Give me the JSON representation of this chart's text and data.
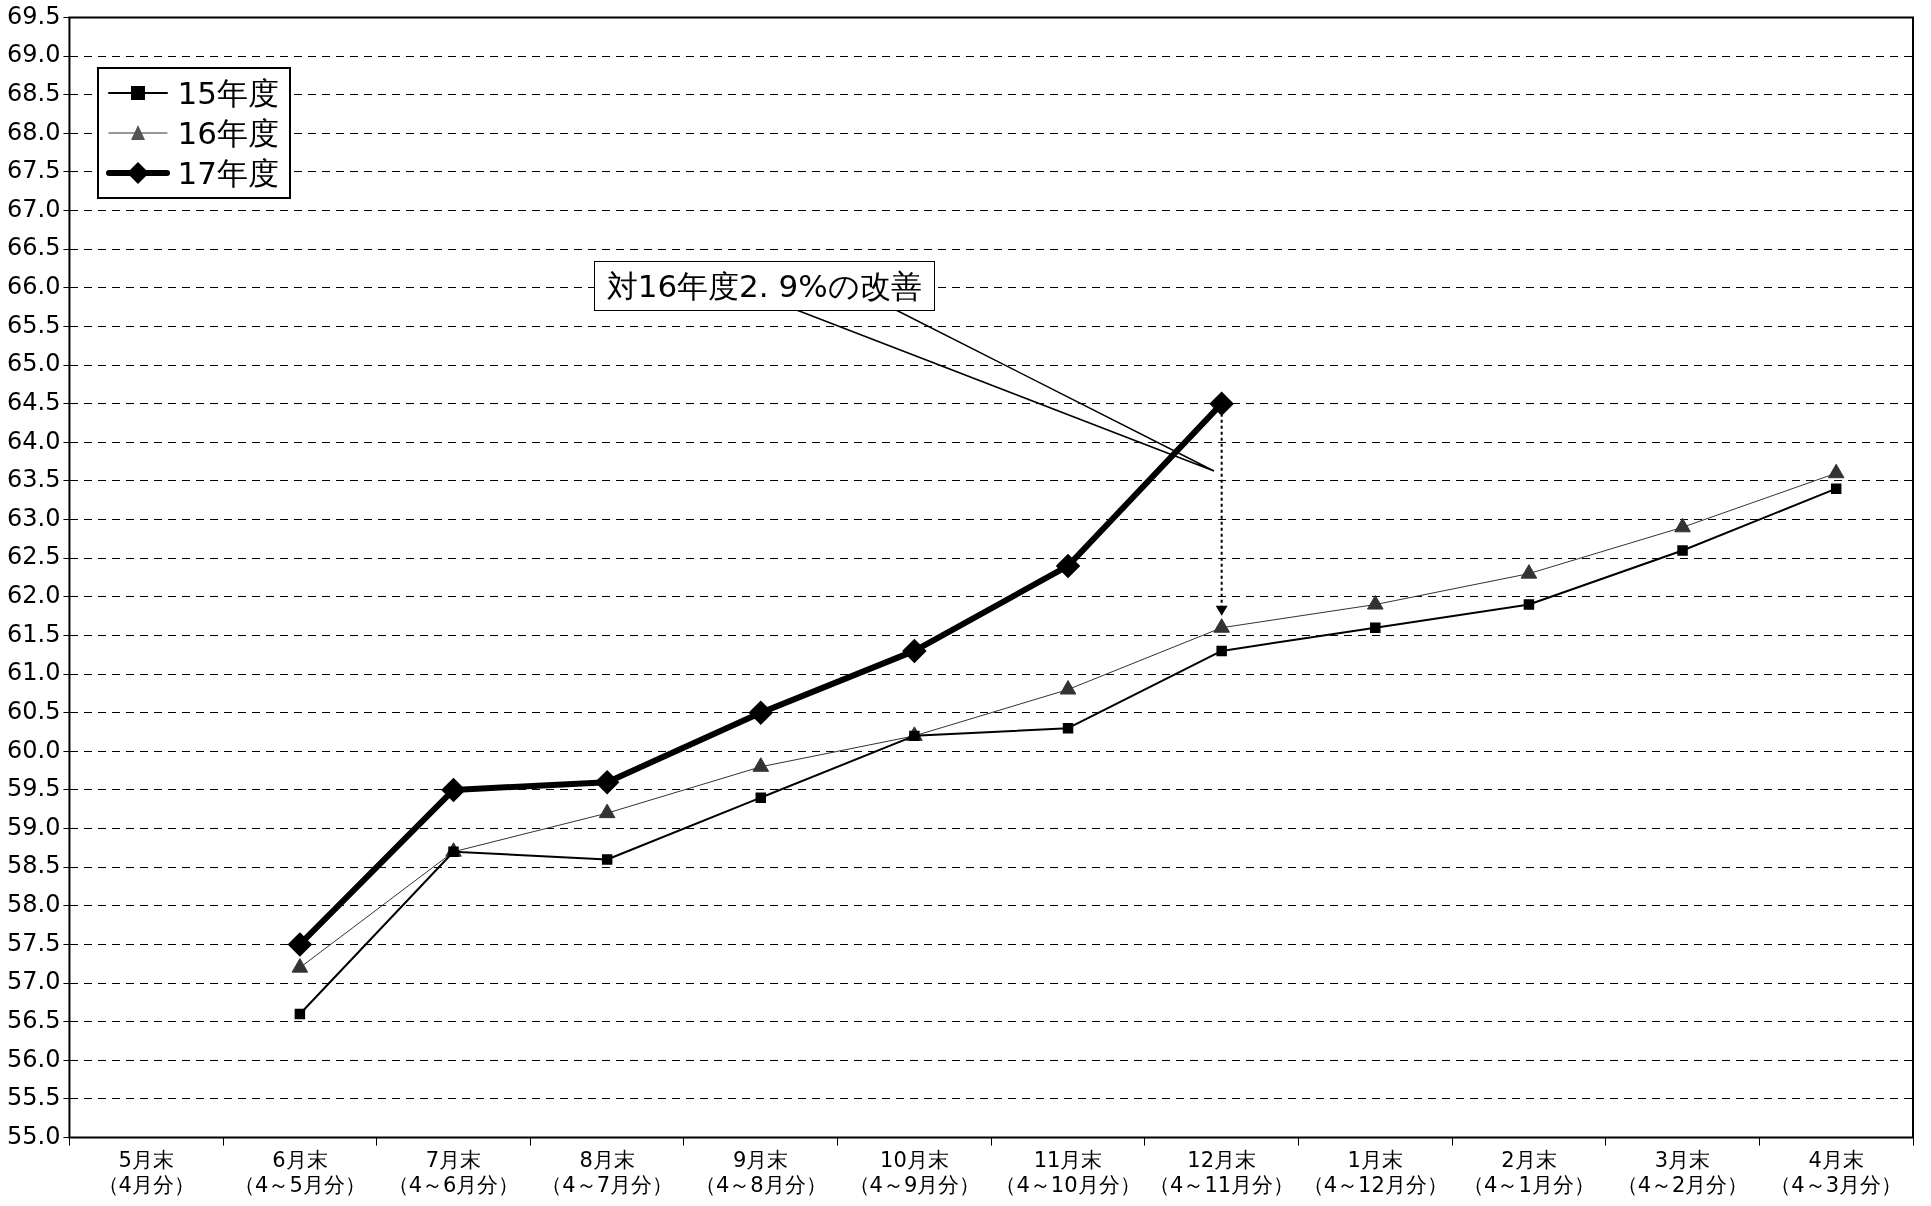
{
  "chart_data": {
    "type": "line",
    "categories": [
      "5月末（4月分）",
      "6月末（4～5月分）",
      "7月末（4～6月分）",
      "8月末（4～7月分）",
      "9月末（4～8月分）",
      "10月末（4～9月分）",
      "11月末（4～10月分）",
      "12月末（4～11月分）",
      "1月末（4～12月分）",
      "2月末（4～1月分）",
      "3月末（4～2月分）",
      "4月末（4～3月分）"
    ],
    "series": [
      {
        "name": "15年度",
        "color": "#000000",
        "marker": "square",
        "values": [
          null,
          56.6,
          58.7,
          58.6,
          59.4,
          60.2,
          60.3,
          61.3,
          61.6,
          61.9,
          62.6,
          63.4
        ]
      },
      {
        "name": "16年度",
        "color": "#333333",
        "marker": "triangle",
        "values": [
          null,
          57.2,
          58.7,
          59.2,
          59.8,
          60.2,
          60.8,
          61.6,
          61.9,
          62.3,
          62.9,
          63.6
        ]
      },
      {
        "name": "17年度",
        "color": "#000000",
        "marker": "diamond",
        "values": [
          null,
          57.5,
          59.5,
          59.6,
          60.5,
          61.3,
          62.4,
          64.5,
          null,
          null,
          null,
          null
        ]
      }
    ],
    "ylim": [
      55,
      69.5
    ],
    "yticks": [
      {
        "value": 55,
        "label": "55.0"
      },
      {
        "value": 55.5,
        "label": "55.5"
      },
      {
        "value": 56,
        "label": "56.0"
      },
      {
        "value": 56.5,
        "label": "56.5"
      },
      {
        "value": 57,
        "label": "57.0"
      },
      {
        "value": 57.5,
        "label": "57.5"
      },
      {
        "value": 58,
        "label": "58.0"
      },
      {
        "value": 58.5,
        "label": "58.5"
      },
      {
        "value": 59,
        "label": "59.0"
      },
      {
        "value": 59.5,
        "label": "59.5"
      },
      {
        "value": 60,
        "label": "60.0"
      },
      {
        "value": 60.5,
        "label": "60.5"
      },
      {
        "value": 61,
        "label": "61.0"
      },
      {
        "value": 61.5,
        "label": "61.5"
      },
      {
        "value": 62,
        "label": "62.0"
      },
      {
        "value": 62.5,
        "label": "62.5"
      },
      {
        "value": 63,
        "label": "63.0"
      },
      {
        "value": 63.5,
        "label": "63.5"
      },
      {
        "value": 64,
        "label": "64.0"
      },
      {
        "value": 64.5,
        "label": "64.5"
      },
      {
        "value": 65,
        "label": "65.0"
      },
      {
        "value": 65.5,
        "label": "65.5"
      },
      {
        "value": 66,
        "label": "66.0"
      },
      {
        "value": 66.5,
        "label": "66.5"
      },
      {
        "value": 67,
        "label": "67.0"
      },
      {
        "value": 67.5,
        "label": "67.5"
      },
      {
        "value": 68,
        "label": "68.0"
      },
      {
        "value": 68.5,
        "label": "68.5"
      },
      {
        "value": 69,
        "label": "69.0"
      },
      {
        "value": 69.5,
        "label": "69.5"
      }
    ],
    "grid": "y",
    "legend": "top left",
    "annotations": [
      "対16年度2. 9%の改善"
    ]
  }
}
